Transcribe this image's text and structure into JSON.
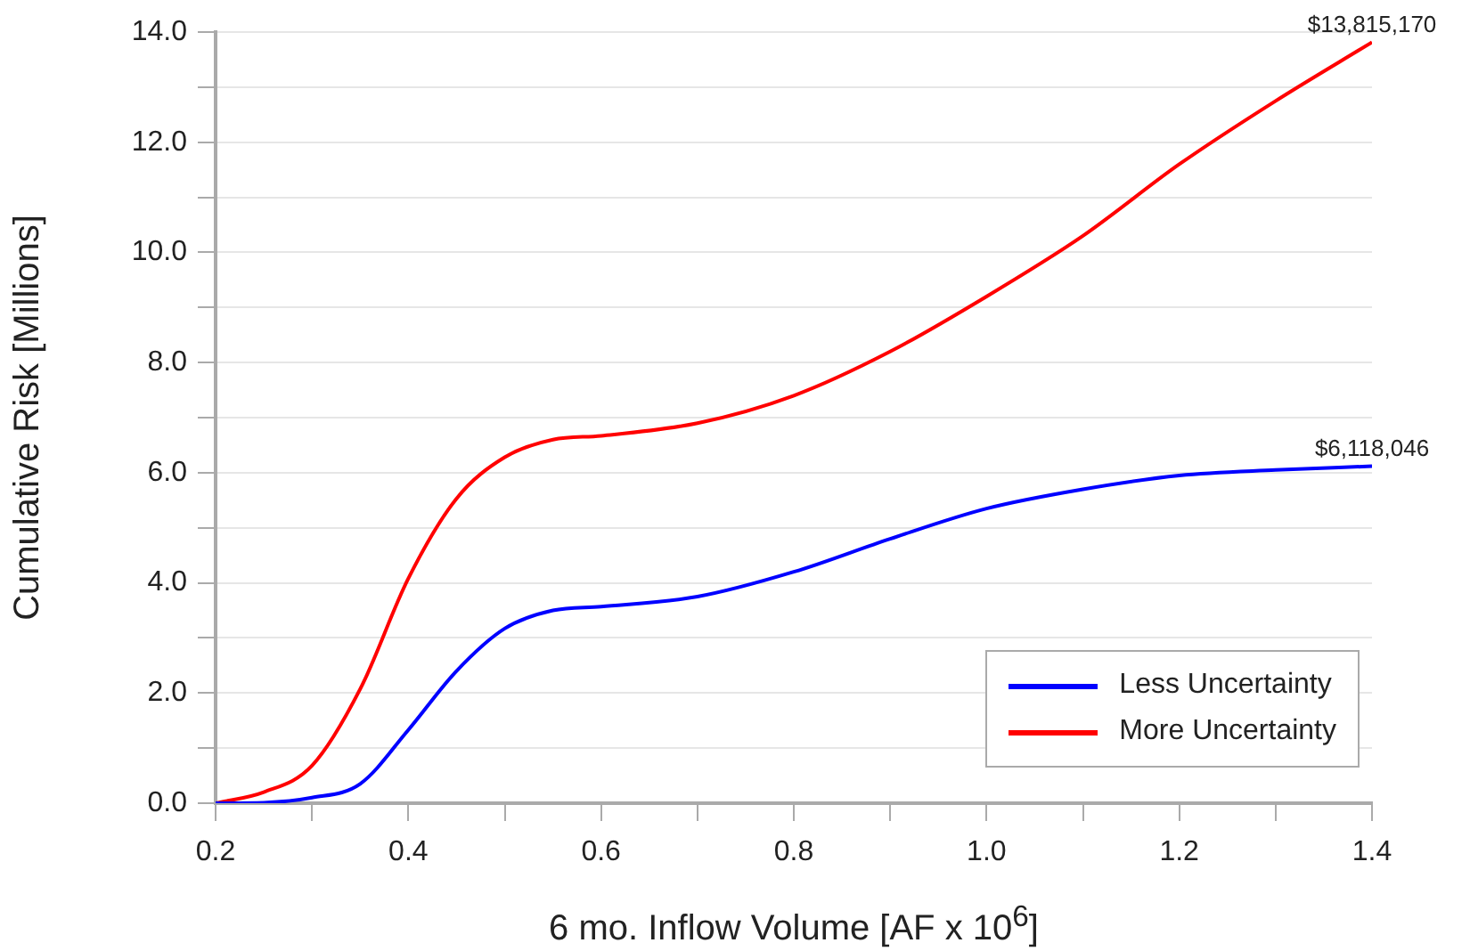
{
  "chart_data": {
    "type": "line",
    "xlabel": "6 mo. Inflow Volume [AF x 10$^{6}$]",
    "ylabel": "Cumulative Risk [Millions]",
    "x": [
      0.2,
      0.25,
      0.3,
      0.35,
      0.4,
      0.45,
      0.5,
      0.55,
      0.6,
      0.7,
      0.8,
      0.9,
      1.0,
      1.1,
      1.2,
      1.3,
      1.4
    ],
    "series": [
      {
        "name": "Less Uncertainty",
        "color": "#0000ff",
        "values": [
          0,
          0.01,
          0.1,
          0.35,
          1.33,
          2.4,
          3.17,
          3.5,
          3.57,
          3.75,
          4.2,
          4.8,
          5.35,
          5.7,
          5.95,
          6.05,
          6.118046
        ]
      },
      {
        "name": "More Uncertainty",
        "color": "#ff0000",
        "values": [
          0,
          0.2,
          0.68,
          2.07,
          4.08,
          5.53,
          6.28,
          6.6,
          6.67,
          6.9,
          7.4,
          8.2,
          9.2,
          10.3,
          11.6,
          12.75,
          13.81517
        ]
      }
    ],
    "xlim": [
      0.2,
      1.4
    ],
    "xticks": [
      0.2,
      {
        "value": 0.3,
        "label": null
      },
      0.4,
      {
        "value": 0.5,
        "label": null
      },
      0.6,
      {
        "value": 0.7,
        "label": null
      },
      0.8,
      {
        "value": 0.9,
        "label": null
      },
      {
        "value": 1.0,
        "label": "1.0"
      },
      {
        "value": 1.1,
        "label": null
      },
      1.2,
      {
        "value": 1.3,
        "label": null
      },
      1.4
    ],
    "ylim": [
      0,
      14
    ],
    "yticks": [
      {
        "value": 0,
        "label": "0.0"
      },
      {
        "value": 1,
        "label": null
      },
      {
        "value": 2,
        "label": "2.0"
      },
      {
        "value": 3,
        "label": null
      },
      {
        "value": 4,
        "label": "4.0"
      },
      {
        "value": 5,
        "label": null
      },
      {
        "value": 6,
        "label": "6.0"
      },
      {
        "value": 7,
        "label": null
      },
      {
        "value": 8,
        "label": "8.0"
      },
      {
        "value": 9,
        "label": null
      },
      {
        "value": 10,
        "label": "10.0"
      },
      {
        "value": 11,
        "label": null
      },
      {
        "value": 12,
        "label": "12.0"
      },
      {
        "value": 13,
        "label": null
      },
      {
        "value": 14,
        "label": "14.0"
      }
    ],
    "annotations": [
      {
        "text": "$13,815,170",
        "x": 1.4,
        "y": 13.81517
      },
      {
        "text": "$6,118,046",
        "x": 1.4,
        "y": 6.118046
      }
    ],
    "grid": "y",
    "legend": "bottom right",
    "marker": "none",
    "line_style": "solid"
  }
}
